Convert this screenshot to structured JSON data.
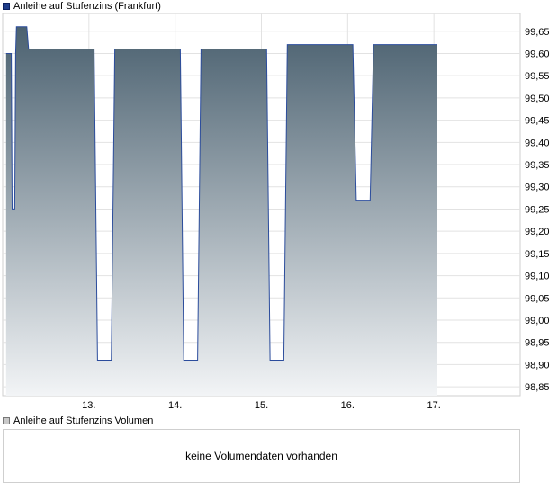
{
  "chart_data": {
    "type": "area",
    "legend_position": "top-left",
    "series": [
      {
        "name": "Anleihe auf Stufenzins (Frankfurt)",
        "color": "#2b4c9c",
        "fill_top": "#4b6170",
        "fill_bottom": "#f2f4f6",
        "points": [
          [
            12.04,
            99.6
          ],
          [
            12.1,
            99.6
          ],
          [
            12.11,
            99.25
          ],
          [
            12.14,
            99.25
          ],
          [
            12.15,
            99.6
          ],
          [
            12.16,
            99.66
          ],
          [
            12.28,
            99.66
          ],
          [
            12.3,
            99.61
          ],
          [
            13.06,
            99.61
          ],
          [
            13.1,
            98.91
          ],
          [
            13.26,
            98.91
          ],
          [
            13.3,
            99.61
          ],
          [
            14.06,
            99.61
          ],
          [
            14.1,
            98.91
          ],
          [
            14.26,
            98.91
          ],
          [
            14.3,
            99.61
          ],
          [
            15.06,
            99.61
          ],
          [
            15.1,
            98.91
          ],
          [
            15.26,
            98.91
          ],
          [
            15.3,
            99.62
          ],
          [
            16.06,
            99.62
          ],
          [
            16.1,
            99.27
          ],
          [
            16.26,
            99.27
          ],
          [
            16.3,
            99.62
          ],
          [
            17.04,
            99.62
          ]
        ]
      }
    ],
    "x_ticks": [
      {
        "value": 13,
        "label": "13."
      },
      {
        "value": 14,
        "label": "14."
      },
      {
        "value": 15,
        "label": "15."
      },
      {
        "value": 16,
        "label": "16."
      },
      {
        "value": 17,
        "label": "17."
      }
    ],
    "y_ticks": [
      "98,85",
      "98,90",
      "98,95",
      "99,00",
      "99,05",
      "99,10",
      "99,15",
      "99,20",
      "99,25",
      "99,30",
      "99,35",
      "99,40",
      "99,45",
      "99,50",
      "99,55",
      "99,60",
      "99,65"
    ],
    "xlim": [
      12.0,
      18.0
    ],
    "ylim": [
      98.83,
      99.69
    ],
    "grid": true
  },
  "volume": {
    "legend": "Anleihe auf Stufenzins Volumen",
    "message": "keine Volumendaten vorhanden"
  }
}
